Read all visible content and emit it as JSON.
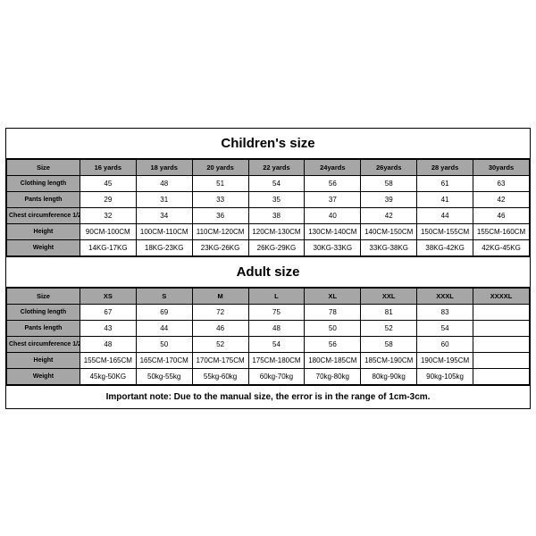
{
  "children": {
    "title": "Children's size",
    "headers": [
      "Size",
      "16 yards",
      "18 yards",
      "20 yards",
      "22 yards",
      "24yards",
      "26yards",
      "28 yards",
      "30yards"
    ],
    "rows": [
      {
        "label": "Clothing length",
        "cells": [
          "45",
          "48",
          "51",
          "54",
          "56",
          "58",
          "61",
          "63"
        ]
      },
      {
        "label": "Pants length",
        "cells": [
          "29",
          "31",
          "33",
          "35",
          "37",
          "39",
          "41",
          "42"
        ]
      },
      {
        "label": "Chest circumference 1/2",
        "cells": [
          "32",
          "34",
          "36",
          "38",
          "40",
          "42",
          "44",
          "46"
        ]
      },
      {
        "label": "Height",
        "cells": [
          "90CM-100CM",
          "100CM-110CM",
          "110CM-120CM",
          "120CM-130CM",
          "130CM-140CM",
          "140CM-150CM",
          "150CM-155CM",
          "155CM-160CM"
        ]
      },
      {
        "label": "Weight",
        "cells": [
          "14KG-17KG",
          "18KG-23KG",
          "23KG-26KG",
          "26KG-29KG",
          "30KG-33KG",
          "33KG-38KG",
          "38KG-42KG",
          "42KG-45KG"
        ]
      }
    ]
  },
  "adult": {
    "title": "Adult size",
    "headers": [
      "Size",
      "XS",
      "S",
      "M",
      "L",
      "XL",
      "XXL",
      "XXXL",
      "XXXXL"
    ],
    "rows": [
      {
        "label": "Clothing length",
        "cells": [
          "67",
          "69",
          "72",
          "75",
          "78",
          "81",
          "83",
          ""
        ]
      },
      {
        "label": "Pants length",
        "cells": [
          "43",
          "44",
          "46",
          "48",
          "50",
          "52",
          "54",
          ""
        ]
      },
      {
        "label": "Chest circumference 1/2",
        "cells": [
          "48",
          "50",
          "52",
          "54",
          "56",
          "58",
          "60",
          ""
        ]
      },
      {
        "label": "Height",
        "cells": [
          "155CM-165CM",
          "165CM-170CM",
          "170CM-175CM",
          "175CM-180CM",
          "180CM-185CM",
          "185CM-190CM",
          "190CM-195CM",
          ""
        ]
      },
      {
        "label": "Weight",
        "cells": [
          "45kg-50KG",
          "50kg-55kg",
          "55kg-60kg",
          "60kg-70kg",
          "70kg-80kg",
          "80kg-90kg",
          "90kg-105kg",
          ""
        ]
      }
    ]
  },
  "note": "Important note: Due to the manual size, the error is in the range of 1cm-3cm."
}
